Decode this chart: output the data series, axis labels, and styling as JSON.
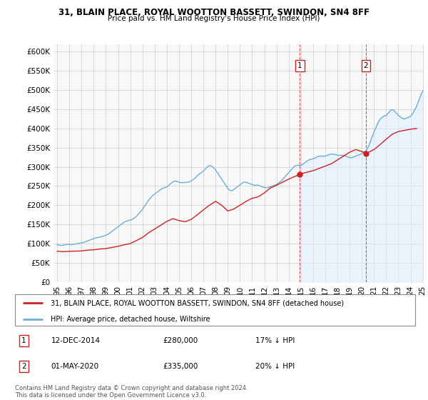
{
  "title": "31, BLAIN PLACE, ROYAL WOOTTON BASSETT, SWINDON, SN4 8FF",
  "subtitle": "Price paid vs. HM Land Registry's House Price Index (HPI)",
  "ylabel_ticks": [
    "£0",
    "£50K",
    "£100K",
    "£150K",
    "£200K",
    "£250K",
    "£300K",
    "£350K",
    "£400K",
    "£450K",
    "£500K",
    "£550K",
    "£600K"
  ],
  "ytick_vals": [
    0,
    50000,
    100000,
    150000,
    200000,
    250000,
    300000,
    350000,
    400000,
    450000,
    500000,
    550000,
    600000
  ],
  "ylim": [
    0,
    620000
  ],
  "legend_line1": "31, BLAIN PLACE, ROYAL WOOTTON BASSETT, SWINDON, SN4 8FF (detached house)",
  "legend_line2": "HPI: Average price, detached house, Wiltshire",
  "annotation1_date": "12-DEC-2014",
  "annotation1_price": "£280,000",
  "annotation1_pct": "17% ↓ HPI",
  "annotation2_date": "01-MAY-2020",
  "annotation2_price": "£335,000",
  "annotation2_pct": "20% ↓ HPI",
  "footnote": "Contains HM Land Registry data © Crown copyright and database right 2024.\nThis data is licensed under the Open Government Licence v3.0.",
  "hpi_line_color": "#6baed6",
  "price_color": "#cc2222",
  "shade_color": "#ddeeff",
  "marker1_x": 2014.92,
  "marker1_y": 280000,
  "marker2_x": 2020.33,
  "marker2_y": 335000,
  "hpi_data": [
    [
      1995.0,
      97000
    ],
    [
      1995.08,
      96500
    ],
    [
      1995.17,
      96000
    ],
    [
      1995.25,
      95500
    ],
    [
      1995.33,
      95000
    ],
    [
      1995.42,
      95500
    ],
    [
      1995.5,
      96000
    ],
    [
      1995.58,
      96500
    ],
    [
      1995.67,
      97000
    ],
    [
      1995.75,
      97500
    ],
    [
      1995.83,
      98000
    ],
    [
      1995.92,
      98500
    ],
    [
      1996.0,
      98000
    ],
    [
      1996.08,
      97500
    ],
    [
      1996.17,
      97000
    ],
    [
      1996.25,
      97500
    ],
    [
      1996.33,
      98000
    ],
    [
      1996.42,
      98500
    ],
    [
      1996.5,
      99000
    ],
    [
      1996.58,
      99500
    ],
    [
      1996.67,
      100000
    ],
    [
      1996.75,
      100500
    ],
    [
      1996.83,
      101000
    ],
    [
      1996.92,
      101500
    ],
    [
      1997.0,
      102000
    ],
    [
      1997.08,
      102500
    ],
    [
      1997.17,
      103000
    ],
    [
      1997.25,
      104000
    ],
    [
      1997.33,
      105000
    ],
    [
      1997.42,
      106000
    ],
    [
      1997.5,
      107000
    ],
    [
      1997.58,
      108000
    ],
    [
      1997.67,
      109000
    ],
    [
      1997.75,
      110000
    ],
    [
      1997.83,
      111000
    ],
    [
      1997.92,
      112000
    ],
    [
      1998.0,
      113000
    ],
    [
      1998.08,
      114000
    ],
    [
      1998.17,
      115000
    ],
    [
      1998.25,
      115500
    ],
    [
      1998.33,
      116000
    ],
    [
      1998.42,
      116500
    ],
    [
      1998.5,
      117000
    ],
    [
      1998.58,
      117500
    ],
    [
      1998.67,
      118000
    ],
    [
      1998.75,
      119000
    ],
    [
      1998.83,
      120000
    ],
    [
      1998.92,
      121000
    ],
    [
      1999.0,
      122000
    ],
    [
      1999.08,
      123000
    ],
    [
      1999.17,
      124000
    ],
    [
      1999.25,
      126000
    ],
    [
      1999.33,
      128000
    ],
    [
      1999.42,
      130000
    ],
    [
      1999.5,
      132000
    ],
    [
      1999.58,
      134000
    ],
    [
      1999.67,
      136000
    ],
    [
      1999.75,
      138000
    ],
    [
      1999.83,
      140000
    ],
    [
      1999.92,
      142000
    ],
    [
      2000.0,
      144000
    ],
    [
      2000.08,
      146000
    ],
    [
      2000.17,
      148000
    ],
    [
      2000.25,
      150000
    ],
    [
      2000.33,
      152000
    ],
    [
      2000.42,
      154000
    ],
    [
      2000.5,
      156000
    ],
    [
      2000.58,
      157000
    ],
    [
      2000.67,
      158000
    ],
    [
      2000.75,
      159000
    ],
    [
      2000.83,
      160000
    ],
    [
      2000.92,
      161000
    ],
    [
      2001.0,
      161000
    ],
    [
      2001.08,
      162000
    ],
    [
      2001.17,
      163000
    ],
    [
      2001.25,
      165000
    ],
    [
      2001.33,
      167000
    ],
    [
      2001.42,
      169000
    ],
    [
      2001.5,
      171000
    ],
    [
      2001.58,
      174000
    ],
    [
      2001.67,
      177000
    ],
    [
      2001.75,
      180000
    ],
    [
      2001.83,
      183000
    ],
    [
      2001.92,
      186000
    ],
    [
      2002.0,
      189000
    ],
    [
      2002.08,
      193000
    ],
    [
      2002.17,
      197000
    ],
    [
      2002.25,
      201000
    ],
    [
      2002.33,
      205000
    ],
    [
      2002.42,
      209000
    ],
    [
      2002.5,
      213000
    ],
    [
      2002.58,
      216000
    ],
    [
      2002.67,
      219000
    ],
    [
      2002.75,
      222000
    ],
    [
      2002.83,
      225000
    ],
    [
      2002.92,
      227000
    ],
    [
      2003.0,
      229000
    ],
    [
      2003.08,
      231000
    ],
    [
      2003.17,
      233000
    ],
    [
      2003.25,
      235000
    ],
    [
      2003.33,
      237000
    ],
    [
      2003.42,
      239000
    ],
    [
      2003.5,
      241000
    ],
    [
      2003.58,
      243000
    ],
    [
      2003.67,
      244000
    ],
    [
      2003.75,
      245000
    ],
    [
      2003.83,
      246000
    ],
    [
      2003.92,
      247000
    ],
    [
      2004.0,
      248000
    ],
    [
      2004.08,
      250000
    ],
    [
      2004.17,
      252000
    ],
    [
      2004.25,
      255000
    ],
    [
      2004.33,
      257000
    ],
    [
      2004.42,
      259000
    ],
    [
      2004.5,
      261000
    ],
    [
      2004.58,
      262000
    ],
    [
      2004.67,
      263000
    ],
    [
      2004.75,
      263000
    ],
    [
      2004.83,
      262000
    ],
    [
      2004.92,
      261000
    ],
    [
      2005.0,
      260000
    ],
    [
      2005.08,
      259000
    ],
    [
      2005.17,
      259000
    ],
    [
      2005.25,
      259000
    ],
    [
      2005.33,
      259000
    ],
    [
      2005.42,
      259000
    ],
    [
      2005.5,
      259000
    ],
    [
      2005.58,
      259000
    ],
    [
      2005.67,
      260000
    ],
    [
      2005.75,
      260000
    ],
    [
      2005.83,
      261000
    ],
    [
      2005.92,
      262000
    ],
    [
      2006.0,
      263000
    ],
    [
      2006.08,
      265000
    ],
    [
      2006.17,
      267000
    ],
    [
      2006.25,
      269000
    ],
    [
      2006.33,
      271000
    ],
    [
      2006.42,
      274000
    ],
    [
      2006.5,
      277000
    ],
    [
      2006.58,
      279000
    ],
    [
      2006.67,
      281000
    ],
    [
      2006.75,
      283000
    ],
    [
      2006.83,
      285000
    ],
    [
      2006.92,
      287000
    ],
    [
      2007.0,
      289000
    ],
    [
      2007.08,
      292000
    ],
    [
      2007.17,
      295000
    ],
    [
      2007.25,
      298000
    ],
    [
      2007.33,
      300000
    ],
    [
      2007.42,
      302000
    ],
    [
      2007.5,
      303000
    ],
    [
      2007.58,
      303000
    ],
    [
      2007.67,
      302000
    ],
    [
      2007.75,
      300000
    ],
    [
      2007.83,
      298000
    ],
    [
      2007.92,
      295000
    ],
    [
      2008.0,
      292000
    ],
    [
      2008.08,
      288000
    ],
    [
      2008.17,
      284000
    ],
    [
      2008.25,
      280000
    ],
    [
      2008.33,
      276000
    ],
    [
      2008.42,
      272000
    ],
    [
      2008.5,
      268000
    ],
    [
      2008.58,
      264000
    ],
    [
      2008.67,
      260000
    ],
    [
      2008.75,
      256000
    ],
    [
      2008.83,
      252000
    ],
    [
      2008.92,
      248000
    ],
    [
      2009.0,
      244000
    ],
    [
      2009.08,
      241000
    ],
    [
      2009.17,
      239000
    ],
    [
      2009.25,
      238000
    ],
    [
      2009.33,
      238000
    ],
    [
      2009.42,
      239000
    ],
    [
      2009.5,
      241000
    ],
    [
      2009.58,
      243000
    ],
    [
      2009.67,
      245000
    ],
    [
      2009.75,
      247000
    ],
    [
      2009.83,
      249000
    ],
    [
      2009.92,
      251000
    ],
    [
      2010.0,
      253000
    ],
    [
      2010.08,
      255000
    ],
    [
      2010.17,
      257000
    ],
    [
      2010.25,
      259000
    ],
    [
      2010.33,
      260000
    ],
    [
      2010.42,
      260000
    ],
    [
      2010.5,
      260000
    ],
    [
      2010.58,
      259000
    ],
    [
      2010.67,
      258000
    ],
    [
      2010.75,
      257000
    ],
    [
      2010.83,
      256000
    ],
    [
      2010.92,
      255000
    ],
    [
      2011.0,
      254000
    ],
    [
      2011.08,
      253000
    ],
    [
      2011.17,
      252000
    ],
    [
      2011.25,
      252000
    ],
    [
      2011.33,
      252000
    ],
    [
      2011.42,
      252000
    ],
    [
      2011.5,
      252000
    ],
    [
      2011.58,
      251000
    ],
    [
      2011.67,
      250000
    ],
    [
      2011.75,
      249000
    ],
    [
      2011.83,
      248000
    ],
    [
      2011.92,
      247000
    ],
    [
      2012.0,
      246000
    ],
    [
      2012.08,
      246000
    ],
    [
      2012.17,
      246000
    ],
    [
      2012.25,
      246000
    ],
    [
      2012.33,
      246000
    ],
    [
      2012.42,
      247000
    ],
    [
      2012.5,
      248000
    ],
    [
      2012.58,
      249000
    ],
    [
      2012.67,
      250000
    ],
    [
      2012.75,
      251000
    ],
    [
      2012.83,
      252000
    ],
    [
      2012.92,
      253000
    ],
    [
      2013.0,
      254000
    ],
    [
      2013.08,
      256000
    ],
    [
      2013.17,
      258000
    ],
    [
      2013.25,
      260000
    ],
    [
      2013.33,
      262000
    ],
    [
      2013.42,
      264000
    ],
    [
      2013.5,
      267000
    ],
    [
      2013.58,
      270000
    ],
    [
      2013.67,
      273000
    ],
    [
      2013.75,
      276000
    ],
    [
      2013.83,
      279000
    ],
    [
      2013.92,
      282000
    ],
    [
      2014.0,
      285000
    ],
    [
      2014.08,
      288000
    ],
    [
      2014.17,
      291000
    ],
    [
      2014.25,
      294000
    ],
    [
      2014.33,
      297000
    ],
    [
      2014.42,
      300000
    ],
    [
      2014.5,
      302000
    ],
    [
      2014.58,
      303000
    ],
    [
      2014.67,
      304000
    ],
    [
      2014.75,
      304000
    ],
    [
      2014.83,
      304000
    ],
    [
      2014.92,
      304000
    ],
    [
      2015.0,
      304000
    ],
    [
      2015.08,
      305000
    ],
    [
      2015.17,
      307000
    ],
    [
      2015.25,
      309000
    ],
    [
      2015.33,
      311000
    ],
    [
      2015.42,
      313000
    ],
    [
      2015.5,
      315000
    ],
    [
      2015.58,
      317000
    ],
    [
      2015.67,
      318000
    ],
    [
      2015.75,
      319000
    ],
    [
      2015.83,
      320000
    ],
    [
      2015.92,
      320000
    ],
    [
      2016.0,
      321000
    ],
    [
      2016.08,
      322000
    ],
    [
      2016.17,
      323000
    ],
    [
      2016.25,
      325000
    ],
    [
      2016.33,
      326000
    ],
    [
      2016.42,
      327000
    ],
    [
      2016.5,
      328000
    ],
    [
      2016.58,
      328000
    ],
    [
      2016.67,
      328000
    ],
    [
      2016.75,
      328000
    ],
    [
      2016.83,
      328000
    ],
    [
      2016.92,
      328000
    ],
    [
      2017.0,
      328000
    ],
    [
      2017.08,
      329000
    ],
    [
      2017.17,
      330000
    ],
    [
      2017.25,
      331000
    ],
    [
      2017.33,
      332000
    ],
    [
      2017.42,
      333000
    ],
    [
      2017.5,
      333000
    ],
    [
      2017.58,
      333000
    ],
    [
      2017.67,
      333000
    ],
    [
      2017.75,
      333000
    ],
    [
      2017.83,
      332000
    ],
    [
      2017.92,
      331000
    ],
    [
      2018.0,
      330000
    ],
    [
      2018.08,
      330000
    ],
    [
      2018.17,
      330000
    ],
    [
      2018.25,
      330000
    ],
    [
      2018.33,
      330000
    ],
    [
      2018.42,
      330000
    ],
    [
      2018.5,
      330000
    ],
    [
      2018.58,
      329000
    ],
    [
      2018.67,
      328000
    ],
    [
      2018.75,
      327000
    ],
    [
      2018.83,
      326000
    ],
    [
      2018.92,
      325000
    ],
    [
      2019.0,
      324000
    ],
    [
      2019.08,
      324000
    ],
    [
      2019.17,
      324000
    ],
    [
      2019.25,
      325000
    ],
    [
      2019.33,
      326000
    ],
    [
      2019.42,
      327000
    ],
    [
      2019.5,
      328000
    ],
    [
      2019.58,
      329000
    ],
    [
      2019.67,
      330000
    ],
    [
      2019.75,
      331000
    ],
    [
      2019.83,
      332000
    ],
    [
      2019.92,
      333000
    ],
    [
      2020.0,
      334000
    ],
    [
      2020.08,
      336000
    ],
    [
      2020.17,
      338000
    ],
    [
      2020.25,
      340000
    ],
    [
      2020.33,
      342000
    ],
    [
      2020.42,
      346000
    ],
    [
      2020.5,
      350000
    ],
    [
      2020.58,
      356000
    ],
    [
      2020.67,
      363000
    ],
    [
      2020.75,
      370000
    ],
    [
      2020.83,
      377000
    ],
    [
      2020.92,
      384000
    ],
    [
      2021.0,
      391000
    ],
    [
      2021.08,
      397000
    ],
    [
      2021.17,
      403000
    ],
    [
      2021.25,
      409000
    ],
    [
      2021.33,
      415000
    ],
    [
      2021.42,
      420000
    ],
    [
      2021.5,
      424000
    ],
    [
      2021.58,
      427000
    ],
    [
      2021.67,
      429000
    ],
    [
      2021.75,
      431000
    ],
    [
      2021.83,
      432000
    ],
    [
      2021.92,
      433000
    ],
    [
      2022.0,
      434000
    ],
    [
      2022.08,
      437000
    ],
    [
      2022.17,
      440000
    ],
    [
      2022.25,
      443000
    ],
    [
      2022.33,
      446000
    ],
    [
      2022.42,
      448000
    ],
    [
      2022.5,
      449000
    ],
    [
      2022.58,
      448000
    ],
    [
      2022.67,
      446000
    ],
    [
      2022.75,
      443000
    ],
    [
      2022.83,
      440000
    ],
    [
      2022.92,
      437000
    ],
    [
      2023.0,
      434000
    ],
    [
      2023.08,
      432000
    ],
    [
      2023.17,
      430000
    ],
    [
      2023.25,
      428000
    ],
    [
      2023.33,
      426000
    ],
    [
      2023.42,
      425000
    ],
    [
      2023.5,
      425000
    ],
    [
      2023.58,
      426000
    ],
    [
      2023.67,
      427000
    ],
    [
      2023.75,
      428000
    ],
    [
      2023.83,
      429000
    ],
    [
      2023.92,
      430000
    ],
    [
      2024.0,
      432000
    ],
    [
      2024.08,
      435000
    ],
    [
      2024.17,
      438000
    ],
    [
      2024.25,
      443000
    ],
    [
      2024.33,
      448000
    ],
    [
      2024.42,
      453000
    ],
    [
      2024.5,
      458000
    ],
    [
      2024.58,
      465000
    ],
    [
      2024.67,
      472000
    ],
    [
      2024.75,
      479000
    ],
    [
      2024.83,
      486000
    ],
    [
      2024.92,
      492000
    ],
    [
      2025.0,
      498000
    ]
  ],
  "price_data": [
    [
      1995.0,
      80000
    ],
    [
      1995.5,
      79000
    ],
    [
      1996.0,
      80000
    ],
    [
      1996.5,
      80500
    ],
    [
      1997.0,
      81000
    ],
    [
      1997.5,
      83000
    ],
    [
      1998.0,
      84000
    ],
    [
      1998.5,
      86000
    ],
    [
      1999.0,
      87000
    ],
    [
      1999.5,
      90000
    ],
    [
      2000.0,
      93000
    ],
    [
      2000.5,
      97000
    ],
    [
      2001.0,
      100000
    ],
    [
      2001.5,
      108000
    ],
    [
      2002.0,
      116000
    ],
    [
      2002.5,
      128000
    ],
    [
      2003.0,
      138000
    ],
    [
      2003.5,
      148000
    ],
    [
      2004.0,
      158000
    ],
    [
      2004.5,
      165000
    ],
    [
      2005.0,
      160000
    ],
    [
      2005.5,
      157000
    ],
    [
      2006.0,
      163000
    ],
    [
      2006.5,
      175000
    ],
    [
      2007.0,
      188000
    ],
    [
      2007.5,
      200000
    ],
    [
      2008.0,
      210000
    ],
    [
      2008.5,
      200000
    ],
    [
      2009.0,
      185000
    ],
    [
      2009.5,
      190000
    ],
    [
      2010.0,
      200000
    ],
    [
      2010.5,
      210000
    ],
    [
      2011.0,
      218000
    ],
    [
      2011.5,
      222000
    ],
    [
      2012.0,
      232000
    ],
    [
      2012.5,
      245000
    ],
    [
      2013.0,
      252000
    ],
    [
      2013.5,
      260000
    ],
    [
      2014.0,
      268000
    ],
    [
      2014.5,
      275000
    ],
    [
      2014.92,
      280000
    ],
    [
      2015.0,
      282000
    ],
    [
      2015.5,
      286000
    ],
    [
      2016.0,
      290000
    ],
    [
      2016.5,
      296000
    ],
    [
      2017.0,
      302000
    ],
    [
      2017.5,
      308000
    ],
    [
      2018.0,
      318000
    ],
    [
      2018.5,
      328000
    ],
    [
      2019.0,
      338000
    ],
    [
      2019.5,
      345000
    ],
    [
      2020.0,
      340000
    ],
    [
      2020.33,
      335000
    ],
    [
      2020.5,
      337000
    ],
    [
      2021.0,
      345000
    ],
    [
      2021.5,
      358000
    ],
    [
      2022.0,
      372000
    ],
    [
      2022.5,
      385000
    ],
    [
      2023.0,
      392000
    ],
    [
      2023.5,
      395000
    ],
    [
      2024.0,
      398000
    ],
    [
      2024.5,
      400000
    ]
  ],
  "shade_x_start": 2014.92,
  "xtick_years": [
    1995,
    1996,
    1997,
    1998,
    1999,
    2000,
    2001,
    2002,
    2003,
    2004,
    2005,
    2006,
    2007,
    2008,
    2009,
    2010,
    2011,
    2012,
    2013,
    2014,
    2015,
    2016,
    2017,
    2018,
    2019,
    2020,
    2021,
    2022,
    2023,
    2024,
    2025
  ],
  "bg_color": "#f8f8f8"
}
